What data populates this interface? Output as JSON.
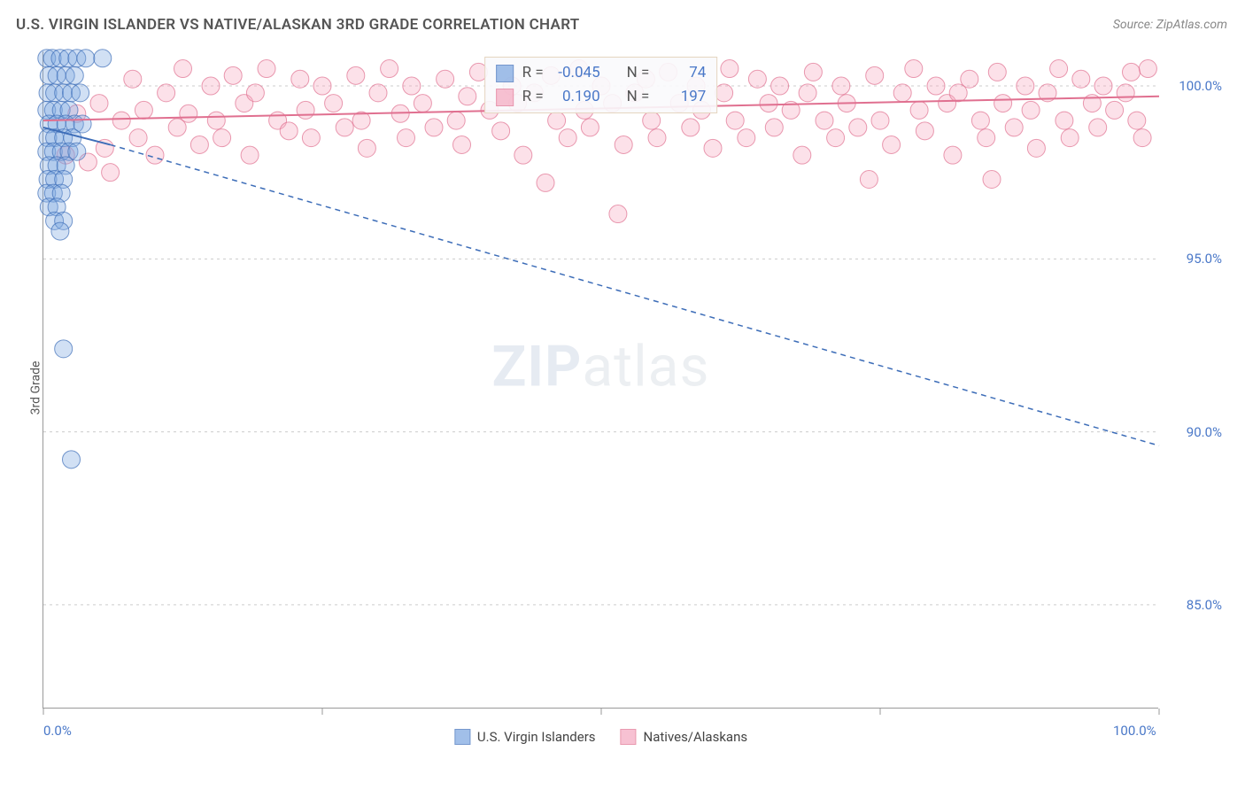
{
  "title": "U.S. VIRGIN ISLANDER VS NATIVE/ALASKAN 3RD GRADE CORRELATION CHART",
  "source": "Source: ZipAtlas.com",
  "watermark_bold": "ZIP",
  "watermark_rest": "atlas",
  "chart": {
    "type": "scatter",
    "y_axis_label": "3rd Grade",
    "background_color": "#ffffff",
    "grid_color": "#cccccc",
    "grid_dash": "3,4",
    "axis_color": "#999999",
    "xlim": [
      0,
      100
    ],
    "ylim": [
      82,
      101
    ],
    "x_ticks": [
      0,
      25,
      50,
      75,
      100
    ],
    "x_tick_labels": {
      "0": "0.0%",
      "100": "100.0%"
    },
    "y_ticks": [
      85,
      90,
      95,
      100
    ],
    "y_tick_labels": {
      "85": "85.0%",
      "90": "90.0%",
      "95": "95.0%",
      "100": "100.0%"
    },
    "label_color": "#4a78c8",
    "label_fontsize": 15,
    "marker_radius": 10,
    "marker_opacity": 0.35,
    "marker_stroke_opacity": 0.7,
    "trend_line_width": 2,
    "trend_dash_width": 1.5,
    "trend_dash_pattern": "6,5"
  },
  "series": {
    "blue": {
      "label": "U.S. Virgin Islanders",
      "fill": "#7aa5e0",
      "stroke": "#3d6db8",
      "R": "-0.045",
      "N": "74",
      "trend_solid": {
        "x1": 0,
        "y1": 98.8,
        "x2": 6,
        "y2": 98.3
      },
      "trend_dash": {
        "x1": 6,
        "y1": 98.3,
        "x2": 100,
        "y2": 89.6
      },
      "points": [
        [
          0.3,
          100.8
        ],
        [
          0.8,
          100.8
        ],
        [
          1.5,
          100.8
        ],
        [
          2.2,
          100.8
        ],
        [
          3.0,
          100.8
        ],
        [
          3.8,
          100.8
        ],
        [
          5.3,
          100.8
        ],
        [
          0.5,
          100.3
        ],
        [
          1.2,
          100.3
        ],
        [
          2.0,
          100.3
        ],
        [
          2.8,
          100.3
        ],
        [
          0.4,
          99.8
        ],
        [
          1.0,
          99.8
        ],
        [
          1.8,
          99.8
        ],
        [
          2.5,
          99.8
        ],
        [
          3.3,
          99.8
        ],
        [
          0.3,
          99.3
        ],
        [
          0.9,
          99.3
        ],
        [
          1.6,
          99.3
        ],
        [
          2.3,
          99.3
        ],
        [
          0.5,
          98.9
        ],
        [
          1.2,
          98.9
        ],
        [
          2.0,
          98.9
        ],
        [
          2.8,
          98.9
        ],
        [
          3.5,
          98.9
        ],
        [
          0.4,
          98.5
        ],
        [
          1.0,
          98.5
        ],
        [
          1.8,
          98.5
        ],
        [
          2.6,
          98.5
        ],
        [
          0.3,
          98.1
        ],
        [
          0.9,
          98.1
        ],
        [
          1.6,
          98.1
        ],
        [
          2.3,
          98.1
        ],
        [
          3.0,
          98.1
        ],
        [
          0.5,
          97.7
        ],
        [
          1.2,
          97.7
        ],
        [
          2.0,
          97.7
        ],
        [
          0.4,
          97.3
        ],
        [
          1.0,
          97.3
        ],
        [
          1.8,
          97.3
        ],
        [
          0.3,
          96.9
        ],
        [
          0.9,
          96.9
        ],
        [
          1.6,
          96.9
        ],
        [
          0.5,
          96.5
        ],
        [
          1.2,
          96.5
        ],
        [
          1.0,
          96.1
        ],
        [
          1.8,
          96.1
        ],
        [
          1.5,
          95.8
        ],
        [
          1.8,
          92.4
        ],
        [
          2.5,
          89.2
        ]
      ]
    },
    "pink": {
      "label": "Natives/Alaskans",
      "fill": "#f5a8c0",
      "stroke": "#e07090",
      "R": "0.190",
      "N": "197",
      "trend_solid": {
        "x1": 0,
        "y1": 99.0,
        "x2": 100,
        "y2": 99.7
      },
      "points": [
        [
          2,
          98.0
        ],
        [
          3,
          99.2
        ],
        [
          4,
          97.8
        ],
        [
          5,
          99.5
        ],
        [
          5.5,
          98.2
        ],
        [
          6,
          97.5
        ],
        [
          7,
          99.0
        ],
        [
          8,
          100.2
        ],
        [
          8.5,
          98.5
        ],
        [
          9,
          99.3
        ],
        [
          10,
          98.0
        ],
        [
          11,
          99.8
        ],
        [
          12,
          98.8
        ],
        [
          12.5,
          100.5
        ],
        [
          13,
          99.2
        ],
        [
          14,
          98.3
        ],
        [
          15,
          100.0
        ],
        [
          15.5,
          99.0
        ],
        [
          16,
          98.5
        ],
        [
          17,
          100.3
        ],
        [
          18,
          99.5
        ],
        [
          18.5,
          98.0
        ],
        [
          19,
          99.8
        ],
        [
          20,
          100.5
        ],
        [
          21,
          99.0
        ],
        [
          22,
          98.7
        ],
        [
          23,
          100.2
        ],
        [
          23.5,
          99.3
        ],
        [
          24,
          98.5
        ],
        [
          25,
          100.0
        ],
        [
          26,
          99.5
        ],
        [
          27,
          98.8
        ],
        [
          28,
          100.3
        ],
        [
          28.5,
          99.0
        ],
        [
          29,
          98.2
        ],
        [
          30,
          99.8
        ],
        [
          31,
          100.5
        ],
        [
          32,
          99.2
        ],
        [
          32.5,
          98.5
        ],
        [
          33,
          100.0
        ],
        [
          34,
          99.5
        ],
        [
          35,
          98.8
        ],
        [
          36,
          100.2
        ],
        [
          37,
          99.0
        ],
        [
          37.5,
          98.3
        ],
        [
          38,
          99.7
        ],
        [
          39,
          100.4
        ],
        [
          40,
          99.3
        ],
        [
          41,
          98.7
        ],
        [
          42,
          100.0
        ],
        [
          42.5,
          99.5
        ],
        [
          43,
          98.0
        ],
        [
          44,
          99.8
        ],
        [
          45,
          97.2
        ],
        [
          45.5,
          100.3
        ],
        [
          46,
          99.0
        ],
        [
          47,
          98.5
        ],
        [
          48,
          100.5
        ],
        [
          48.5,
          99.3
        ],
        [
          49,
          98.8
        ],
        [
          50,
          100.0
        ],
        [
          51,
          99.5
        ],
        [
          51.5,
          96.3
        ],
        [
          52,
          98.3
        ],
        [
          53,
          99.8
        ],
        [
          54,
          100.2
        ],
        [
          54.5,
          99.0
        ],
        [
          55,
          98.5
        ],
        [
          56,
          100.4
        ],
        [
          57,
          99.5
        ],
        [
          58,
          98.8
        ],
        [
          58.5,
          100.0
        ],
        [
          59,
          99.3
        ],
        [
          60,
          98.2
        ],
        [
          61,
          99.8
        ],
        [
          61.5,
          100.5
        ],
        [
          62,
          99.0
        ],
        [
          63,
          98.5
        ],
        [
          64,
          100.2
        ],
        [
          65,
          99.5
        ],
        [
          65.5,
          98.8
        ],
        [
          66,
          100.0
        ],
        [
          67,
          99.3
        ],
        [
          68,
          98.0
        ],
        [
          68.5,
          99.8
        ],
        [
          69,
          100.4
        ],
        [
          70,
          99.0
        ],
        [
          71,
          98.5
        ],
        [
          71.5,
          100.0
        ],
        [
          72,
          99.5
        ],
        [
          73,
          98.8
        ],
        [
          74,
          97.3
        ],
        [
          74.5,
          100.3
        ],
        [
          75,
          99.0
        ],
        [
          76,
          98.3
        ],
        [
          77,
          99.8
        ],
        [
          78,
          100.5
        ],
        [
          78.5,
          99.3
        ],
        [
          79,
          98.7
        ],
        [
          80,
          100.0
        ],
        [
          81,
          99.5
        ],
        [
          81.5,
          98.0
        ],
        [
          82,
          99.8
        ],
        [
          83,
          100.2
        ],
        [
          84,
          99.0
        ],
        [
          84.5,
          98.5
        ],
        [
          85,
          97.3
        ],
        [
          85.5,
          100.4
        ],
        [
          86,
          99.5
        ],
        [
          87,
          98.8
        ],
        [
          88,
          100.0
        ],
        [
          88.5,
          99.3
        ],
        [
          89,
          98.2
        ],
        [
          90,
          99.8
        ],
        [
          91,
          100.5
        ],
        [
          91.5,
          99.0
        ],
        [
          92,
          98.5
        ],
        [
          93,
          100.2
        ],
        [
          94,
          99.5
        ],
        [
          94.5,
          98.8
        ],
        [
          95,
          100.0
        ],
        [
          96,
          99.3
        ],
        [
          97,
          99.8
        ],
        [
          97.5,
          100.4
        ],
        [
          98,
          99.0
        ],
        [
          98.5,
          98.5
        ],
        [
          99,
          100.5
        ]
      ]
    }
  },
  "stats_box": {
    "r_label": "R =",
    "n_label": "N ="
  },
  "legend_labels": {
    "blue": "U.S. Virgin Islanders",
    "pink": "Natives/Alaskans"
  }
}
